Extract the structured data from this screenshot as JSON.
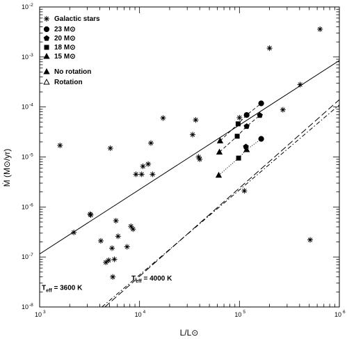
{
  "chart_data": {
    "type": "scatter",
    "xlabel": "L/L⊙",
    "ylabel": "Ṁ (M⊙/yr)",
    "xscale": "log",
    "yscale": "log",
    "xlim": [
      1000,
      1000000
    ],
    "ylim": [
      1e-08,
      0.01
    ],
    "x_ticks": [
      "10",
      "10",
      "10",
      "10"
    ],
    "x_tick_exponents": [
      "3",
      "4",
      "5",
      "6"
    ],
    "y_ticks": [
      "10",
      "10",
      "10",
      "10",
      "10",
      "10",
      "10"
    ],
    "y_tick_exponents": [
      "-8",
      "-7",
      "-6",
      "-5",
      "-4",
      "-3",
      "-2"
    ],
    "legend": {
      "position": "top-left",
      "entries": [
        {
          "marker": "asterisk",
          "label": "Galactic stars"
        },
        {
          "marker": "circle",
          "label": "23 M⊙"
        },
        {
          "marker": "pentagon",
          "label": "20 M⊙"
        },
        {
          "marker": "square",
          "label": "18 M⊙"
        },
        {
          "marker": "triangle",
          "label": "15 M⊙"
        },
        {
          "marker": "triangle-filled",
          "label": "No rotation"
        },
        {
          "marker": "triangle-open",
          "label": "Rotation"
        }
      ]
    },
    "annotations": [
      {
        "text_main": "T",
        "text_sub": "eff",
        "text_rest": " = 3600 K",
        "x": 1050,
        "y": 2.2e-08
      },
      {
        "text_main": "T",
        "text_sub": "eff",
        "text_rest": " = 4000 K",
        "x": 8300,
        "y": 3.4e-08
      }
    ],
    "lines": [
      {
        "name": "",
        "style": "solid",
        "points": [
          [
            1000,
            1.15e-07
          ],
          [
            1000000,
            0.00085
          ]
        ]
      },
      {
        "name": "T_eff = 3600 K",
        "style": "long-dash",
        "points": [
          [
            4500,
            1e-08
          ],
          [
            1000000,
            0.00014
          ]
        ]
      },
      {
        "name": "T_eff = 4000 K",
        "style": "dash-dot",
        "points": [
          [
            4200,
            1e-08
          ],
          [
            1000000,
            0.00011
          ]
        ]
      }
    ],
    "series": [
      {
        "name": "Galactic stars",
        "marker": "asterisk",
        "points": [
          [
            1600,
            1.7e-05
          ],
          [
            2200,
            3.1e-07
          ],
          [
            3200,
            7.2e-07
          ],
          [
            3250,
            6.9e-07
          ],
          [
            4100,
            2.1e-07
          ],
          [
            4600,
            7.8e-08
          ],
          [
            4900,
            8.6e-08
          ],
          [
            5100,
            1.5e-05
          ],
          [
            5300,
            1.5e-07
          ],
          [
            5400,
            4e-08
          ],
          [
            5600,
            9e-08
          ],
          [
            5800,
            5.3e-07
          ],
          [
            6100,
            2.6e-07
          ],
          [
            7500,
            1.6e-07
          ],
          [
            8200,
            4.1e-07
          ],
          [
            8600,
            3.6e-07
          ],
          [
            9200,
            4.5e-06
          ],
          [
            10500,
            4.5e-06
          ],
          [
            10800,
            6.5e-06
          ],
          [
            12200,
            7.2e-06
          ],
          [
            13500,
            4.5e-06
          ],
          [
            13000,
            1.9e-05
          ],
          [
            17200,
            6e-05
          ],
          [
            34000,
            2.8e-05
          ],
          [
            36500,
            5.5e-05
          ],
          [
            39000,
            1e-05
          ],
          [
            40000,
            9e-06
          ],
          [
            100000,
            6.1e-05
          ],
          [
            112000,
            2.1e-06
          ],
          [
            272000,
            8.8e-05
          ],
          [
            405000,
            0.00028
          ],
          [
            510000,
            2.2e-07
          ],
          [
            640000,
            0.0036
          ],
          [
            200000,
            0.0015
          ]
        ]
      },
      {
        "name": "23 M⊙",
        "marker": "circle",
        "points": [
          [
            118000,
            6.9e-05
          ],
          [
            165000,
            0.000118
          ],
          [
            165000,
            2.3e-05
          ]
        ]
      },
      {
        "name": "20 M⊙",
        "marker": "pentagon",
        "points": [
          [
            118000,
            4.1e-05
          ],
          [
            160000,
            6.8e-05
          ],
          [
            116000,
            1.6e-05
          ]
        ]
      },
      {
        "name": "18 M⊙",
        "marker": "square",
        "points": [
          [
            97000,
            4.6e-05
          ],
          [
            95000,
            2.6e-05
          ],
          [
            98000,
            9.5e-06
          ]
        ]
      },
      {
        "name": "15 M⊙",
        "marker": "triangle",
        "points": [
          [
            64000,
            2.1e-05
          ],
          [
            63000,
            1.25e-05
          ],
          [
            62000,
            4.3e-06
          ],
          [
            118000,
            1.4e-05
          ]
        ]
      }
    ],
    "model_tracks": [
      {
        "style": "dashed",
        "points": [
          [
            64000,
            2.1e-05
          ],
          [
            97000,
            4.6e-05
          ],
          [
            118000,
            6.9e-05
          ],
          [
            165000,
            0.000118
          ]
        ]
      },
      {
        "style": "dashed",
        "points": [
          [
            63000,
            1.25e-05
          ],
          [
            95000,
            2.6e-05
          ],
          [
            118000,
            4.1e-05
          ],
          [
            160000,
            6.8e-05
          ]
        ]
      },
      {
        "style": "dotted",
        "points": [
          [
            62000,
            4.3e-06
          ],
          [
            98000,
            9.5e-06
          ],
          [
            118000,
            1.4e-05
          ],
          [
            165000,
            2.3e-05
          ]
        ]
      }
    ]
  }
}
